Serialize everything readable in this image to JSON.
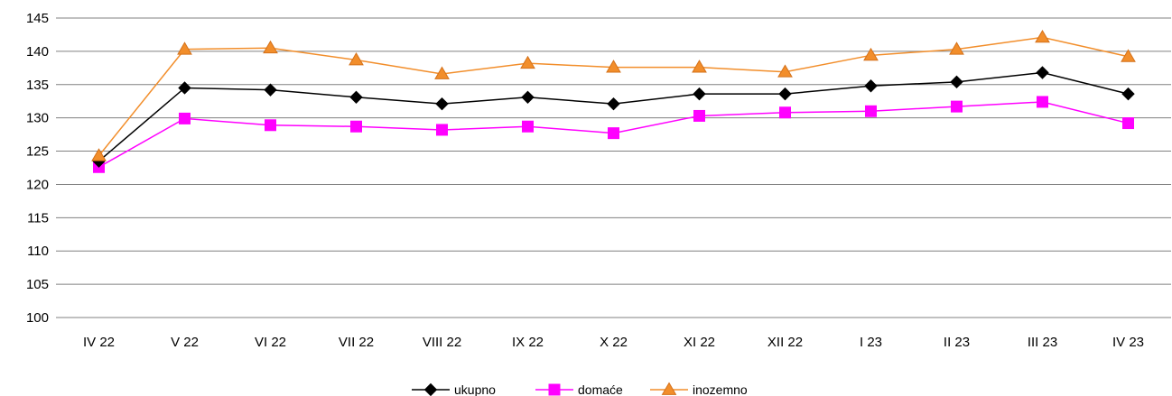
{
  "chart_data": {
    "type": "line",
    "categories": [
      "IV 22",
      "V 22",
      "VI 22",
      "VII 22",
      "VIII 22",
      "IX 22",
      "X 22",
      "XI 22",
      "XII 22",
      "I 23",
      "II 23",
      "III 23",
      "IV 23"
    ],
    "series": [
      {
        "name": "ukupno",
        "color": "#000000",
        "marker": "diamond",
        "values": [
          123.5,
          134.5,
          134.2,
          133.1,
          132.1,
          133.1,
          132.1,
          133.6,
          133.6,
          134.8,
          135.4,
          136.8,
          133.6
        ]
      },
      {
        "name": "domaće",
        "color": "#ff00ff",
        "marker": "square",
        "values": [
          122.6,
          129.9,
          128.9,
          128.7,
          128.2,
          128.7,
          127.7,
          130.3,
          130.8,
          131.0,
          131.7,
          132.4,
          129.2
        ]
      },
      {
        "name": "inozemno",
        "color": "#f28e2b",
        "marker": "triangle",
        "values": [
          124.3,
          140.3,
          140.5,
          138.7,
          136.6,
          138.2,
          137.6,
          137.6,
          136.9,
          139.4,
          140.3,
          142.1,
          139.2
        ]
      }
    ],
    "title": "",
    "xlabel": "",
    "ylabel": "",
    "ylim": [
      100,
      145
    ],
    "yticks": [
      "100",
      "105",
      "110",
      "115",
      "120",
      "125",
      "130",
      "135",
      "140",
      "145"
    ],
    "grid": true,
    "legend_position": "bottom-center"
  }
}
